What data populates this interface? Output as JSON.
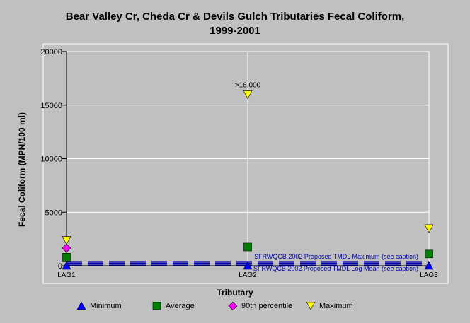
{
  "chart_data": {
    "type": "scatter",
    "title": "Bear Valley Cr, Cheda Cr & Devils Gulch Tributaries Fecal Coliform, 1999-2001",
    "title_lines": [
      "Bear Valley Cr, Cheda Cr & Devils Gulch Tributaries Fecal Coliform,",
      "1999-2001"
    ],
    "xlabel": "Tributary",
    "ylabel": "Fecal Coliform (MPN/100 ml)",
    "categories": [
      "LAG1",
      "LAG2",
      "LAG3"
    ],
    "ylim": [
      0,
      20000
    ],
    "yticks": [
      "0",
      "5000",
      "10000",
      "15000",
      "20000"
    ],
    "grid": true,
    "legend_position": "bottom",
    "series": [
      {
        "name": "Minimum",
        "marker": "triangle-up",
        "color": "#0000ff",
        "values": [
          0,
          0,
          0
        ]
      },
      {
        "name": "Average",
        "marker": "square",
        "color": "#008000",
        "values": [
          800,
          1750,
          1100
        ]
      },
      {
        "name": "90th percentile",
        "marker": "diamond",
        "color": "#ff00ff",
        "values": [
          1650,
          null,
          null
        ]
      },
      {
        "name": "Maximum",
        "marker": "triangle-down",
        "color": "#ffff00",
        "values": [
          2400,
          16000,
          3500
        ]
      }
    ],
    "reference_lines": [
      {
        "label": "SFRWQCB 2002 Proposed TMDL Maximum (see caption)",
        "value": 400,
        "color": "#0000aa"
      },
      {
        "label": "SFRWQCB 2002 Proposed TMDL Log Mean (see caption)",
        "value": 200,
        "color": "#0000aa"
      }
    ],
    "annotations": [
      {
        "text": ">16,000",
        "category": "LAG2",
        "value": 16000
      }
    ]
  }
}
